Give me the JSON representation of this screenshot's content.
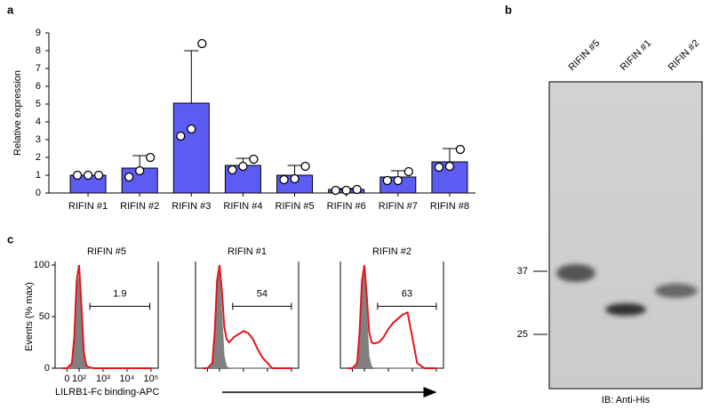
{
  "chart_data": [
    {
      "type": "bar",
      "panel": "a",
      "ylabel": "Relative expression",
      "categories": [
        "RIFIN #1",
        "RIFIN #2",
        "RIFIN #3",
        "RIFIN #4",
        "RIFIN #5",
        "RIFIN #6",
        "RIFIN #7",
        "RIFIN #8"
      ],
      "values": [
        1.0,
        1.4,
        5.05,
        1.55,
        1.0,
        0.2,
        0.9,
        1.75
      ],
      "errors": [
        0,
        0.7,
        2.95,
        0.4,
        0.55,
        0.05,
        0.35,
        0.75
      ],
      "points": [
        [
          1,
          1,
          1
        ],
        [
          0.9,
          1.25,
          2.0
        ],
        [
          3.2,
          3.6,
          8.4
        ],
        [
          1.3,
          1.5,
          1.9
        ],
        [
          0.75,
          0.8,
          1.5
        ],
        [
          0.15,
          0.15,
          0.2
        ],
        [
          0.7,
          0.7,
          1.2
        ],
        [
          1.45,
          1.5,
          2.45
        ]
      ],
      "color": "#5c5cf2",
      "ylim": [
        0,
        9
      ],
      "yticks": [
        0,
        1,
        2,
        3,
        4,
        5,
        6,
        7,
        8,
        9
      ]
    },
    {
      "type": "blot",
      "panel": "b",
      "lanes": [
        "RIFIN #5",
        "RIFIN #1",
        "RIFIN #2"
      ],
      "markers": [
        37,
        25
      ],
      "xlabel": "IB: Anti-His"
    },
    {
      "type": "area",
      "panel": "c",
      "title": "RIFIN #5",
      "ylabel": "Events (% max)",
      "xlabel": "LILRB1-Fc binding-APC",
      "xlim": [
        1,
        5.3
      ],
      "ylim": [
        0,
        100
      ],
      "yticks": [
        0,
        50,
        100
      ],
      "xticks": [
        {
          "value": 1.5,
          "label": "0"
        },
        {
          "value": 2,
          "label": "10²"
        },
        {
          "value": 3,
          "label": "10³"
        },
        {
          "value": 4,
          "label": "10⁴"
        },
        {
          "value": 5,
          "label": "10⁵"
        }
      ],
      "x": [
        1.3,
        1.5,
        1.7,
        1.8,
        1.9,
        2.0,
        2.1,
        2.2,
        2.3,
        2.4,
        2.6,
        2.8,
        3.0,
        3.2,
        3.4,
        3.6,
        3.8,
        4.0,
        4.2,
        4.5,
        5.0
      ],
      "series": [
        {
          "color": "#808080",
          "values": [
            0,
            0,
            5,
            35,
            80,
            90,
            50,
            10,
            2,
            0,
            0,
            0,
            0,
            0,
            0,
            0,
            0,
            0,
            0,
            0,
            0
          ]
        },
        {
          "color": "#e8141b",
          "values": [
            0,
            0,
            5,
            30,
            85,
            100,
            60,
            15,
            3,
            1,
            0,
            0,
            0,
            0,
            0,
            0,
            0,
            0,
            0,
            0,
            0
          ]
        }
      ],
      "gate": [
        2.45,
        4.95
      ],
      "gate_value": 1.9
    },
    {
      "type": "area",
      "title": "RIFIN #1",
      "x": [
        1.3,
        1.5,
        1.7,
        1.8,
        1.9,
        2.0,
        2.1,
        2.2,
        2.3,
        2.4,
        2.6,
        2.8,
        3.0,
        3.2,
        3.4,
        3.6,
        3.8,
        4.0,
        4.2,
        4.5,
        5.0
      ],
      "series": [
        {
          "color": "#808080",
          "values": [
            0,
            0,
            5,
            40,
            85,
            95,
            55,
            12,
            2,
            0,
            0,
            0,
            0,
            0,
            0,
            0,
            0,
            0,
            0,
            0,
            0
          ]
        },
        {
          "color": "#e8141b",
          "values": [
            0,
            0,
            5,
            35,
            85,
            100,
            75,
            40,
            28,
            25,
            30,
            33,
            36,
            34,
            28,
            18,
            10,
            5,
            0,
            0,
            0
          ]
        }
      ],
      "gate": [
        2.55,
        5.0
      ],
      "gate_value": 54
    },
    {
      "type": "area",
      "title": "RIFIN #2",
      "x": [
        1.3,
        1.5,
        1.7,
        1.8,
        1.9,
        2.0,
        2.1,
        2.2,
        2.3,
        2.4,
        2.6,
        2.8,
        3.0,
        3.2,
        3.4,
        3.6,
        3.8,
        4.0,
        4.2,
        4.5,
        5.0
      ],
      "series": [
        {
          "color": "#808080",
          "values": [
            0,
            0,
            5,
            40,
            85,
            95,
            55,
            12,
            2,
            0,
            0,
            0,
            0,
            0,
            0,
            0,
            0,
            0,
            0,
            0,
            0
          ]
        },
        {
          "color": "#e8141b",
          "values": [
            0,
            0,
            5,
            35,
            85,
            100,
            70,
            35,
            25,
            24,
            25,
            30,
            38,
            44,
            48,
            52,
            54,
            30,
            5,
            0,
            0
          ]
        }
      ],
      "gate": [
        2.55,
        5.0
      ],
      "gate_value": 63
    }
  ]
}
